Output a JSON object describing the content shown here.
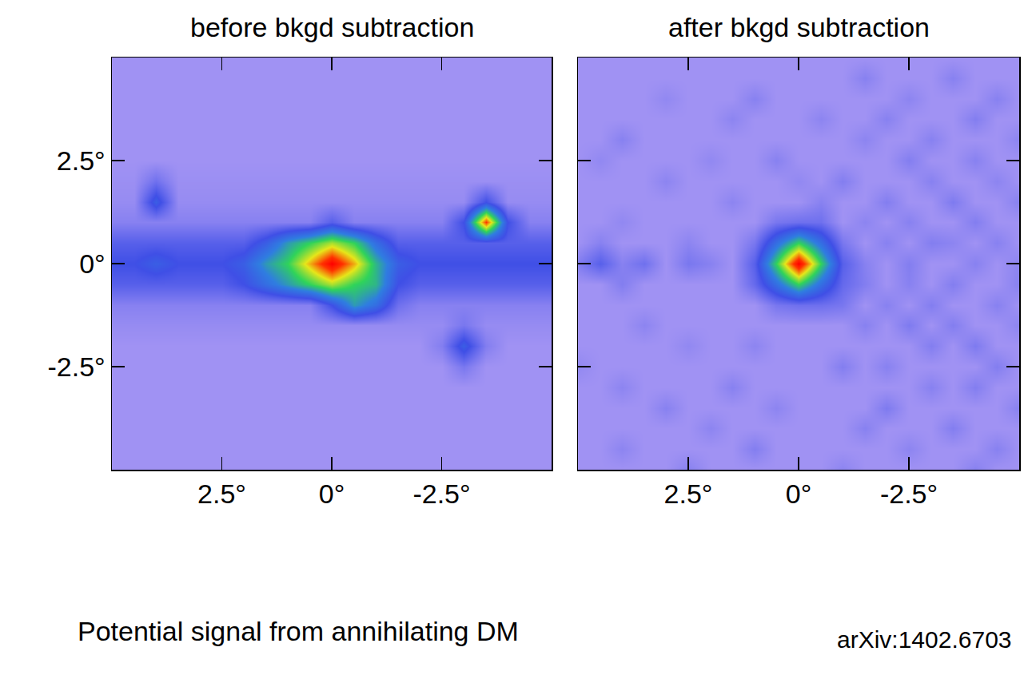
{
  "chart_data": [
    {
      "type": "heatmap",
      "title": "before bkgd subtraction",
      "x": [
        -5,
        -4.5,
        -4,
        -3.5,
        -3,
        -2.5,
        -2,
        -1.5,
        -1,
        -0.5,
        0,
        0.5,
        1,
        1.5,
        2,
        2.5,
        3,
        3.5,
        4,
        4.5,
        5
      ],
      "y": [
        -5,
        -4.5,
        -4,
        -3.5,
        -3,
        -2.5,
        -2,
        -1.5,
        -1,
        -0.5,
        0,
        0.5,
        1,
        1.5,
        2,
        2.5,
        3,
        3.5,
        4,
        4.5,
        5
      ],
      "z": [
        [
          1,
          1,
          1,
          1,
          1,
          1,
          1,
          1,
          1,
          1,
          1,
          1,
          1,
          1,
          1,
          1,
          1,
          1,
          1,
          1,
          1
        ],
        [
          1,
          1,
          1,
          1,
          1,
          1,
          1,
          1,
          1,
          1,
          1,
          1,
          1,
          1,
          1,
          1,
          1,
          1,
          1,
          1,
          1
        ],
        [
          1,
          1,
          1,
          1,
          1,
          1,
          1,
          1,
          1,
          1,
          1,
          1,
          1,
          1,
          1,
          1,
          1,
          1,
          1,
          1,
          1
        ],
        [
          1,
          1,
          1,
          1,
          1,
          1,
          1,
          1,
          1,
          1,
          1,
          1,
          1,
          1,
          1,
          1,
          1,
          1,
          1,
          1,
          1
        ],
        [
          1,
          1,
          1,
          1,
          1,
          1,
          1,
          1,
          1,
          1,
          1,
          1,
          1,
          1,
          1,
          1,
          1,
          1,
          1,
          1,
          1
        ],
        [
          1,
          1,
          1,
          1,
          1.8,
          1,
          1,
          1,
          1,
          1,
          1,
          1,
          1,
          1,
          1,
          1,
          1,
          1,
          1,
          1,
          1
        ],
        [
          1,
          1,
          1,
          1.6,
          3.5,
          1.6,
          1,
          1,
          1,
          1,
          1,
          1,
          1,
          1,
          1,
          1,
          1,
          1,
          1,
          1,
          1
        ],
        [
          1.2,
          1.2,
          1.2,
          1.2,
          1.8,
          1.2,
          1.2,
          1.2,
          1.2,
          1.2,
          1.2,
          1.2,
          1.2,
          1.2,
          1.2,
          1.2,
          1.2,
          1.2,
          1.2,
          1.2,
          1.2
        ],
        [
          1.5,
          1.5,
          1.5,
          1.5,
          1.5,
          1.5,
          1.5,
          2,
          4,
          5,
          3,
          1.5,
          1.5,
          1.5,
          1.5,
          1.5,
          1.5,
          1.5,
          1.5,
          1.5,
          1.5
        ],
        [
          2.5,
          2.5,
          2.5,
          2.5,
          2.5,
          2.5,
          2.5,
          3,
          5.5,
          6,
          7,
          6,
          5,
          4,
          3,
          2.5,
          2.5,
          2.5,
          2.5,
          2.5,
          2.5
        ],
        [
          3,
          3,
          3,
          3,
          3,
          3,
          3,
          3.5,
          5.5,
          8,
          10,
          8,
          6,
          5,
          3.5,
          3,
          3,
          3,
          3.5,
          3,
          3
        ],
        [
          2.5,
          2.5,
          2.5,
          2.5,
          2.5,
          2.5,
          2.5,
          2.5,
          4,
          6,
          7,
          6,
          5,
          3.5,
          2.5,
          2.5,
          2.5,
          2.5,
          2.5,
          2.5,
          2.5
        ],
        [
          1.5,
          1.5,
          3,
          9,
          3,
          1.5,
          1.5,
          1.5,
          1.5,
          1.5,
          2.5,
          1.5,
          1.5,
          1.5,
          1.5,
          1.5,
          1.5,
          1.5,
          1.5,
          1.5,
          1.5
        ],
        [
          1.2,
          1.2,
          1.2,
          3,
          1.2,
          1.2,
          1.2,
          1.2,
          1.2,
          1.2,
          1.2,
          1.2,
          1.2,
          1.2,
          1.2,
          1.2,
          1.2,
          1.2,
          3.5,
          1.2,
          1.2
        ],
        [
          1.1,
          1.1,
          1.1,
          1.1,
          1.1,
          1.1,
          1.1,
          1.1,
          1.1,
          1.1,
          1.1,
          1.1,
          1.1,
          1.1,
          1.1,
          1.1,
          1.1,
          1.1,
          2,
          1.1,
          1.1
        ],
        [
          1,
          1,
          1,
          1,
          1,
          1,
          1,
          1,
          1,
          1,
          1,
          1,
          1,
          1,
          1,
          1,
          1,
          1,
          1,
          1,
          1
        ],
        [
          1,
          1,
          1,
          1,
          1,
          1,
          1,
          1,
          1,
          1,
          1,
          1,
          1,
          1,
          1,
          1,
          1,
          1,
          1,
          1,
          1
        ],
        [
          1,
          1,
          1,
          1,
          1,
          1,
          1,
          1,
          1,
          1,
          1,
          1,
          1,
          1,
          1,
          1,
          1,
          1,
          1,
          1,
          1
        ],
        [
          1,
          1,
          1,
          1,
          1,
          1,
          1,
          1,
          1,
          1,
          1,
          1,
          1,
          1,
          1,
          1,
          1,
          1,
          1,
          1,
          1
        ],
        [
          1,
          1,
          1,
          1,
          1,
          1,
          1,
          1,
          1,
          1,
          1,
          1,
          1,
          1,
          1,
          1,
          1,
          1,
          1,
          1,
          1
        ],
        [
          1,
          1,
          1,
          1,
          1,
          1,
          1,
          1,
          1,
          1,
          1,
          1,
          1,
          1,
          1,
          1,
          1,
          1,
          1,
          1,
          1
        ]
      ],
      "zlim": [
        0,
        10
      ],
      "xlim": [
        5,
        -5
      ],
      "ylim": [
        -5,
        5
      ],
      "xticks": [
        {
          "value": 2.5,
          "label": "2.5°"
        },
        {
          "value": 0,
          "label": "0°"
        },
        {
          "value": -2.5,
          "label": "-2.5°"
        }
      ],
      "yticks": [
        {
          "value": 2.5,
          "label": "2.5°"
        },
        {
          "value": 0,
          "label": "0°"
        },
        {
          "value": -2.5,
          "label": "-2.5°"
        }
      ]
    },
    {
      "type": "heatmap",
      "title": "after bkgd subtraction",
      "x": [
        -5,
        -4.5,
        -4,
        -3.5,
        -3,
        -2.5,
        -2,
        -1.5,
        -1,
        -0.5,
        0,
        0.5,
        1,
        1.5,
        2,
        2.5,
        3,
        3.5,
        4,
        4.5,
        5
      ],
      "y": [
        -5,
        -4.5,
        -4,
        -3.5,
        -3,
        -2.5,
        -2,
        -1.5,
        -1,
        -0.5,
        0,
        0.5,
        1,
        1.5,
        2,
        2.5,
        3,
        3.5,
        4,
        4.5,
        5
      ],
      "z": [
        [
          1,
          1,
          1.5,
          1,
          1,
          1,
          1,
          1,
          1.4,
          1,
          1,
          1,
          1,
          1,
          1,
          1.5,
          1,
          1,
          1,
          1,
          1
        ],
        [
          1,
          1.5,
          1,
          1,
          1,
          1.4,
          1,
          1,
          1,
          1,
          1,
          1,
          1.6,
          1,
          1,
          1,
          1,
          1,
          1.4,
          1,
          1
        ],
        [
          1,
          1,
          1,
          1.6,
          1,
          1,
          1,
          1.5,
          1,
          1,
          1,
          1,
          1,
          1,
          1.4,
          1,
          1,
          1,
          1,
          1,
          1
        ],
        [
          1.5,
          1,
          1,
          1,
          1,
          1,
          1.7,
          1,
          1,
          1,
          1,
          1.4,
          1,
          1,
          1,
          1,
          1.5,
          1,
          1,
          1,
          1
        ],
        [
          1,
          1,
          1.6,
          1,
          1.5,
          1,
          1,
          1,
          1,
          1,
          1,
          1,
          1,
          1.5,
          1,
          1,
          1,
          1,
          1.4,
          1,
          1
        ],
        [
          1,
          1.6,
          1,
          1,
          1,
          1,
          1.5,
          1,
          1.6,
          1,
          1,
          1,
          1,
          1,
          1,
          1,
          1,
          1,
          1,
          1,
          1.3
        ],
        [
          1,
          1,
          1.7,
          1,
          1.6,
          1,
          1,
          1,
          1,
          1,
          1,
          1,
          1.4,
          1,
          1,
          1.3,
          1,
          1,
          1,
          1,
          1
        ],
        [
          1.4,
          1,
          1,
          1.6,
          1,
          1.7,
          1,
          1.5,
          1,
          1,
          1,
          1,
          1,
          1,
          1,
          1,
          1,
          1.4,
          1,
          1,
          1
        ],
        [
          1,
          1.5,
          1,
          1,
          1.6,
          1,
          1.5,
          1,
          1.8,
          2,
          2,
          1.8,
          1,
          1,
          1,
          1,
          1,
          1,
          1,
          1,
          1
        ],
        [
          1.5,
          1,
          1,
          1.6,
          1,
          1.5,
          1,
          1.6,
          2.2,
          4,
          6,
          4,
          2.2,
          1,
          1,
          1,
          1,
          1,
          1.6,
          1,
          1
        ],
        [
          1.4,
          1,
          1.5,
          1,
          1,
          1.6,
          1,
          1.5,
          2.5,
          6,
          10,
          6,
          2.5,
          1,
          1.5,
          1.8,
          1,
          2,
          1.5,
          2.5,
          1.6
        ],
        [
          1,
          1.5,
          1,
          1.4,
          1.6,
          1,
          1.5,
          1,
          1.8,
          4,
          6,
          4,
          1.8,
          1,
          1,
          1.4,
          1,
          1,
          1,
          1.5,
          1
        ],
        [
          1,
          1,
          1.6,
          1,
          1,
          1.5,
          1,
          1.4,
          1,
          2,
          2,
          1.8,
          1,
          1,
          1,
          1,
          1,
          1,
          1.3,
          1,
          1
        ],
        [
          1.5,
          1,
          1,
          1.7,
          1,
          1,
          1.6,
          1,
          1,
          1.5,
          1,
          1,
          1,
          1.4,
          1,
          1,
          1,
          1,
          1,
          1,
          1
        ],
        [
          1,
          1.4,
          1,
          1,
          1.5,
          1,
          1,
          1,
          1.6,
          1,
          1.3,
          1,
          1,
          1,
          1,
          1,
          1.4,
          1,
          1,
          1,
          1
        ],
        [
          1,
          1,
          1.5,
          1,
          1,
          1.6,
          1,
          1,
          1,
          1,
          1,
          1.5,
          1,
          1,
          1.3,
          1,
          1,
          1,
          1,
          1.3,
          1
        ],
        [
          1.4,
          1,
          1,
          1,
          1.5,
          1,
          1,
          1.4,
          1,
          1,
          1,
          1,
          1,
          1,
          1,
          1,
          1,
          1,
          1.5,
          1,
          1
        ],
        [
          1,
          1,
          1.6,
          1,
          1,
          1,
          1.5,
          1,
          1,
          1.4,
          1,
          1,
          1,
          1.4,
          1,
          1,
          1,
          1,
          1,
          1,
          1
        ],
        [
          1,
          1.5,
          1,
          1,
          1,
          1.4,
          1,
          1,
          1,
          1,
          1,
          1,
          1.5,
          1,
          1,
          1,
          1.3,
          1,
          1,
          1,
          1
        ],
        [
          1,
          1,
          1,
          1.5,
          1,
          1,
          1,
          1.5,
          1,
          1,
          1,
          1,
          1,
          1,
          1,
          1,
          1,
          1,
          1,
          1,
          1
        ],
        [
          1,
          1,
          1,
          1,
          1,
          1,
          1,
          1,
          1,
          1,
          1,
          1,
          1,
          1,
          1,
          1,
          1,
          1,
          1,
          1,
          1
        ]
      ],
      "zlim": [
        0,
        10
      ],
      "xlim": [
        5,
        -5
      ],
      "ylim": [
        -5,
        5
      ],
      "xticks": [
        {
          "value": 2.5,
          "label": "2.5°"
        },
        {
          "value": 0,
          "label": "0°"
        },
        {
          "value": -2.5,
          "label": "-2.5°"
        }
      ],
      "yticks": [
        {
          "value": 2.5,
          "label": "2.5°"
        },
        {
          "value": 0,
          "label": "0°"
        },
        {
          "value": -2.5,
          "label": "-2.5°"
        }
      ],
      "tick_labels": "x"
    }
  ],
  "caption": "Potential signal from annihilating DM",
  "source": "arXiv:1402.6703"
}
